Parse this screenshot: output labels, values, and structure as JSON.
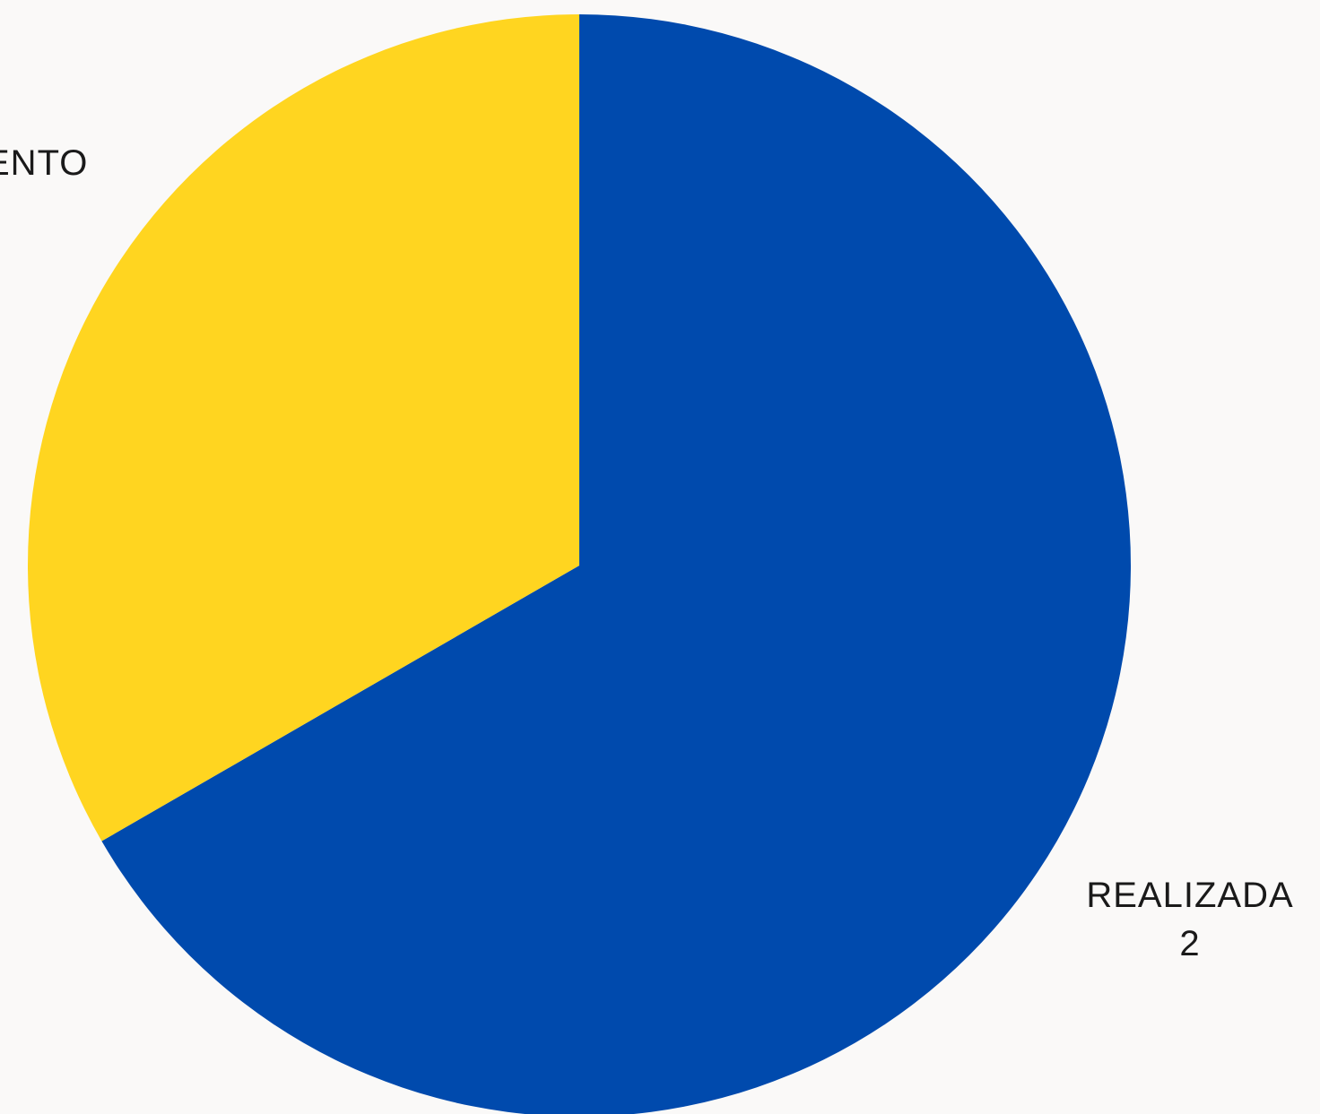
{
  "chart_data": {
    "type": "pie",
    "slices": [
      {
        "label": "REALIZADA",
        "value": 2,
        "value_label": "2",
        "color": "#004aad"
      },
      {
        "label": "ENTO",
        "value": 1,
        "value_label": "",
        "color": "#ffd520"
      }
    ],
    "start_angle_deg": 0,
    "direction": "clockwise",
    "legend": "none"
  }
}
